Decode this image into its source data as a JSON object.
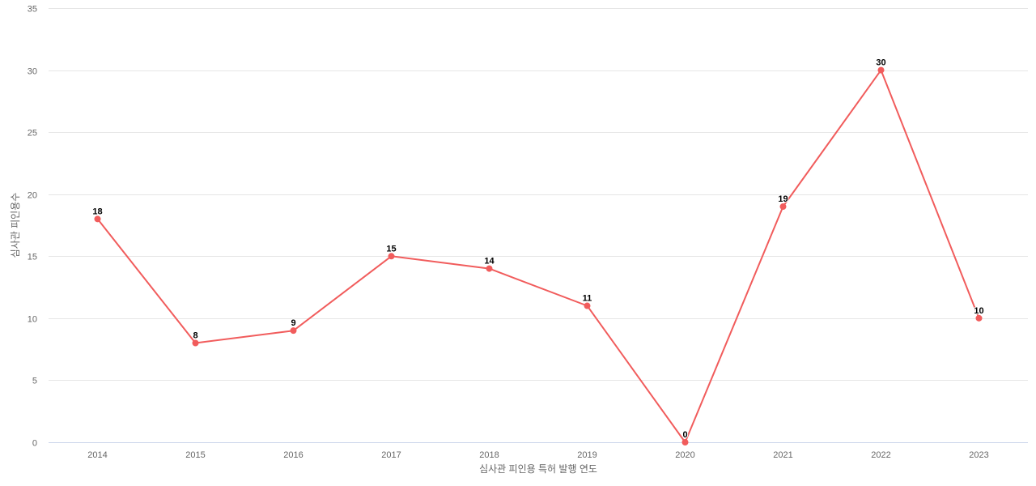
{
  "chart_data": {
    "type": "line",
    "title": "",
    "xlabel": "심사관 피인용 특허 발행 연도",
    "ylabel": "심사관 피인용수",
    "categories": [
      "2014",
      "2015",
      "2016",
      "2017",
      "2018",
      "2019",
      "2020",
      "2021",
      "2022",
      "2023"
    ],
    "series": [
      {
        "name": "심사관 피인용수",
        "color": "#f15c5c",
        "values": [
          18,
          8,
          9,
          15,
          14,
          11,
          0,
          19,
          30,
          10
        ]
      }
    ],
    "ylim": [
      0,
      35
    ],
    "yticks": [
      0,
      5,
      10,
      15,
      20,
      25,
      30,
      35
    ],
    "grid": true,
    "data_labels": true,
    "legend": "none"
  },
  "colors": {
    "line": "#f15c5c",
    "grid": "#e6e6e6",
    "axis": "#ccd6eb",
    "tick_text": "#666666"
  }
}
